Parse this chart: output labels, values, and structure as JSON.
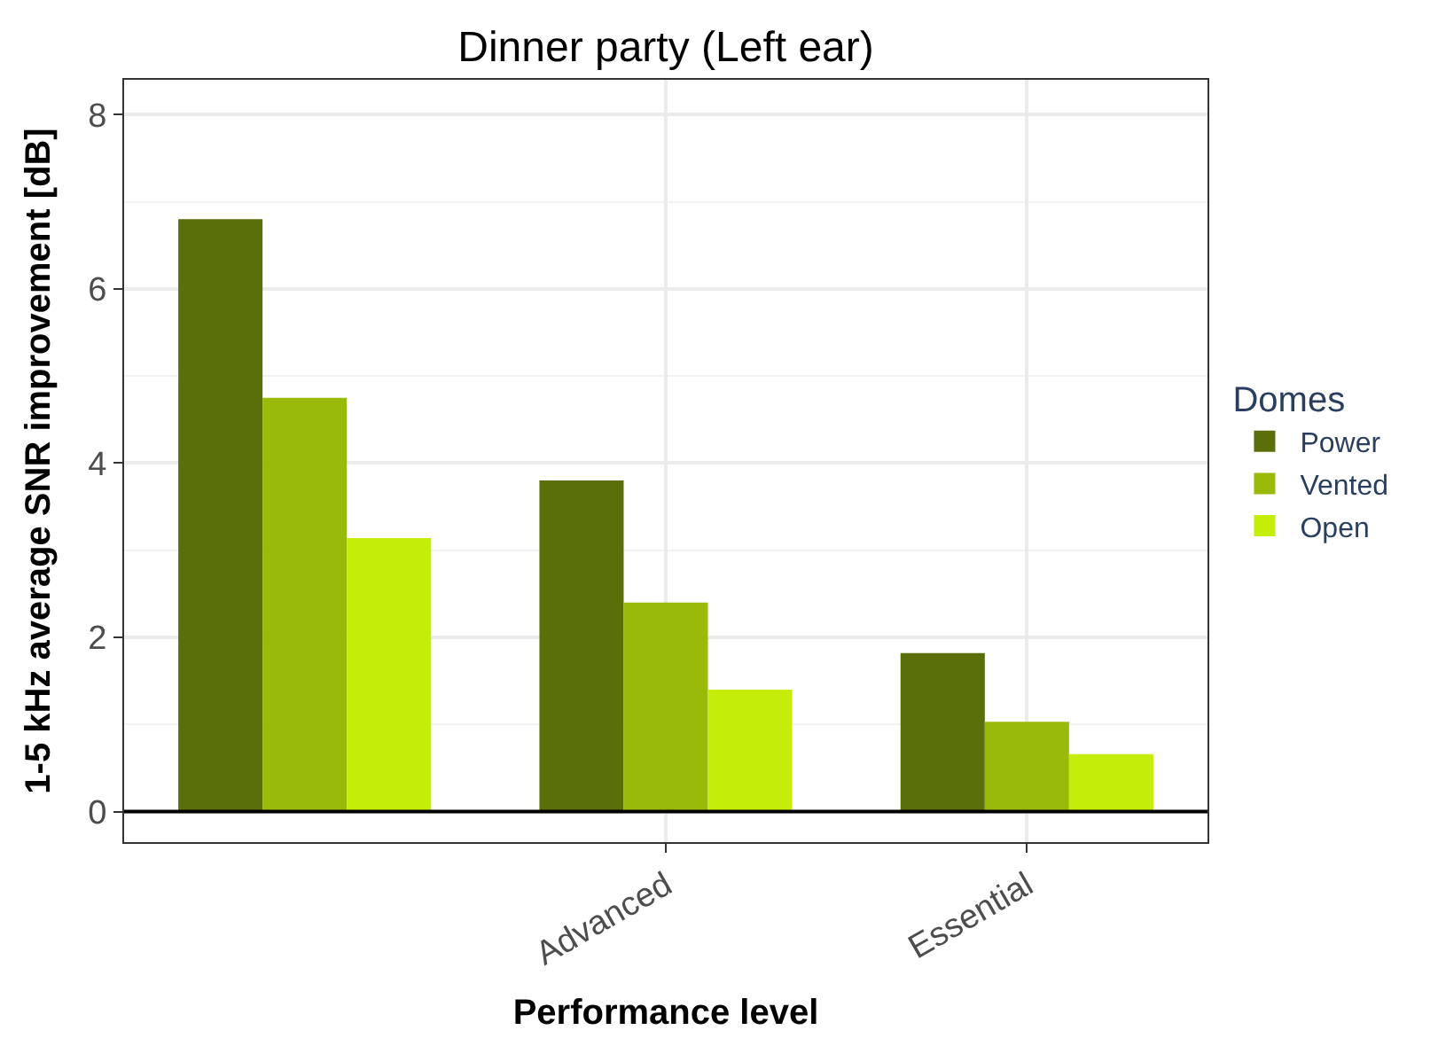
{
  "chart_data": {
    "type": "bar",
    "title": "Dinner party (Left ear)",
    "xlabel": "Performance level",
    "ylabel": "1-5 kHz average SNR improvement [dB]",
    "legend_title": "Domes",
    "categories": [
      null,
      "Advanced",
      "Essential"
    ],
    "series": [
      {
        "name": "Power",
        "color": "#5a6e0a",
        "values": [
          6.8,
          3.8,
          1.82
        ]
      },
      {
        "name": "Vented",
        "color": "#9aba0a",
        "values": [
          4.75,
          2.4,
          1.03
        ]
      },
      {
        "name": "Open",
        "color": "#c4ee0a",
        "values": [
          3.14,
          1.4,
          0.66
        ]
      }
    ],
    "ylim": [
      -0.35,
      8.4
    ],
    "yticks": [
      0,
      2,
      4,
      6,
      8
    ],
    "grid": true,
    "legend": "right",
    "ref_lines": [
      {
        "axis": "y",
        "value": 0,
        "color": "#000000"
      }
    ]
  }
}
